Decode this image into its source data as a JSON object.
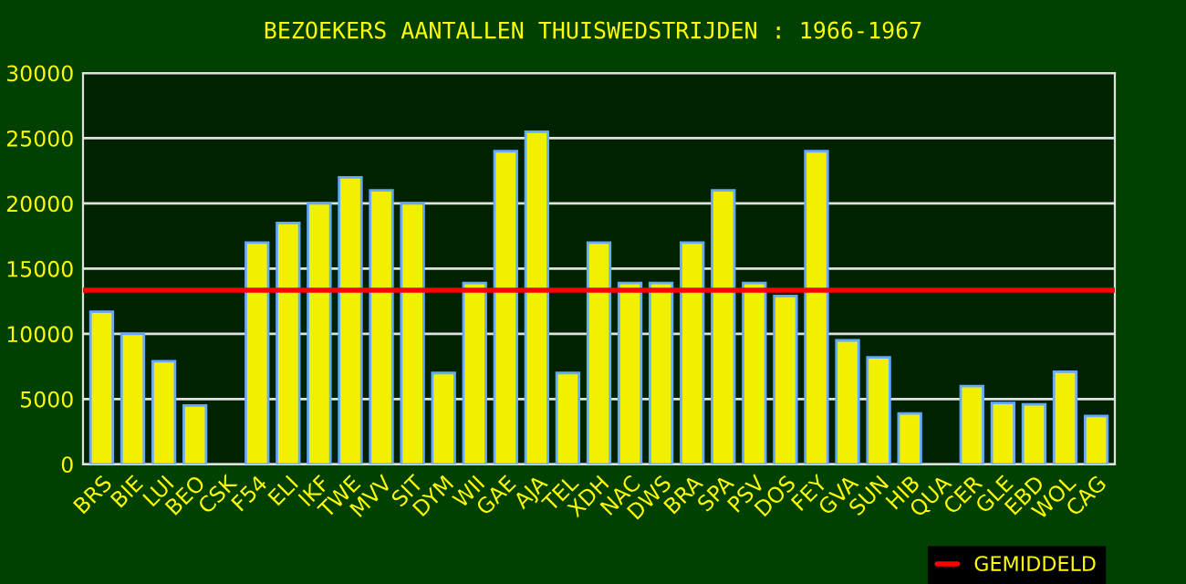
{
  "chart_data": {
    "type": "bar",
    "title": "BEZOEKERS AANTALLEN THUISWEDSTRIJDEN : 1966-1967",
    "categories": [
      "BRS",
      "BIE",
      "LUI",
      "BEO",
      "CSK",
      "F54",
      "ELI",
      "IKF",
      "TWE",
      "MVV",
      "SIT",
      "DYM",
      "WII",
      "GAE",
      "AJA",
      "TEL",
      "XDH",
      "NAC",
      "DWS",
      "BRA",
      "SPA",
      "PSV",
      "DOS",
      "FEY",
      "GVA",
      "SUN",
      "HIB",
      "QUA",
      "CER",
      "GLE",
      "EBD",
      "WOL",
      "CAG"
    ],
    "values": [
      11700,
      10000,
      7900,
      4500,
      null,
      17000,
      18500,
      20000,
      22000,
      21000,
      20000,
      7000,
      13900,
      24000,
      25500,
      7000,
      17000,
      13900,
      13900,
      17000,
      21000,
      13900,
      12900,
      24000,
      9500,
      8200,
      3900,
      null,
      6000,
      4700,
      4600,
      7100,
      3700
    ],
    "color": "#f0f000",
    "ylim": [
      0,
      30000
    ],
    "yticks": [
      0,
      5000,
      10000,
      15000,
      20000,
      25000,
      30000
    ],
    "grid": "y",
    "ref_lines": [
      {
        "axis": "y",
        "value": 13350,
        "label": "GEMIDDELD",
        "color": "#ff0000"
      }
    ],
    "legend": "bottom right"
  }
}
